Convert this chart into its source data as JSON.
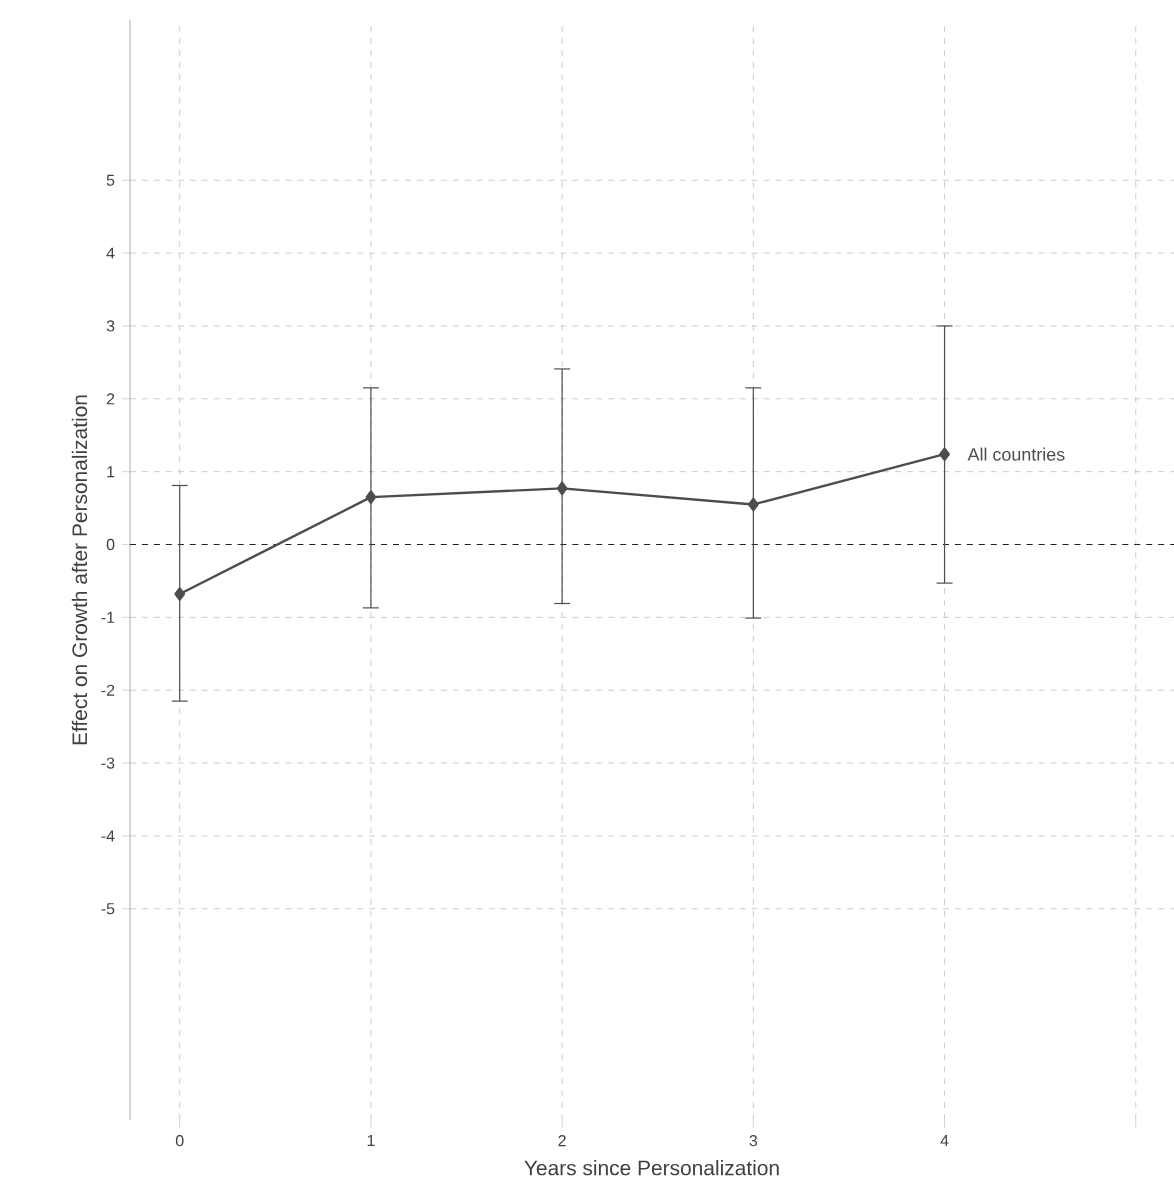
{
  "chart_data": {
    "type": "line",
    "xlabel": "Years since Personalization",
    "ylabel": "Effect on Growth after Personalization",
    "x": [
      0,
      1,
      2,
      3,
      4
    ],
    "series": [
      {
        "name": "All countries",
        "color": "#4d4d4d",
        "values": [
          -0.68,
          0.65,
          0.77,
          0.55,
          1.24
        ],
        "errors": [
          [
            -2.15,
            0.81
          ],
          [
            -0.87,
            2.15
          ],
          [
            -0.81,
            2.41
          ],
          [
            -1.01,
            2.15
          ],
          [
            -0.53,
            3.0
          ]
        ]
      }
    ],
    "xlim": [
      -0.26,
      5.2
    ],
    "ylim": [
      -7.9,
      7.2
    ],
    "xticks": [
      0,
      1,
      2,
      3,
      4,
      {
        "value": 5,
        "label": null
      }
    ],
    "yticks": [
      -5,
      -4,
      -3,
      -2,
      -1,
      0,
      1,
      2,
      3,
      4,
      5
    ],
    "ref_lines": [
      {
        "axis": "y",
        "value": 0,
        "color": "#222222",
        "line_style": "dashed"
      }
    ],
    "grid": true,
    "marker": "diamond",
    "line_style": "solid"
  }
}
